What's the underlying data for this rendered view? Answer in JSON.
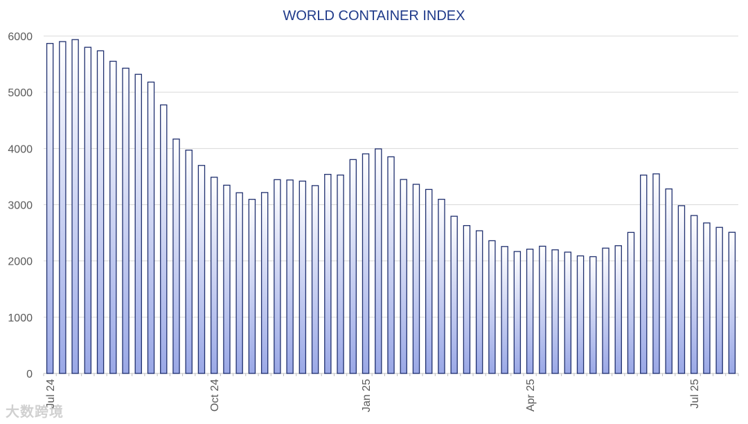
{
  "chart_data": {
    "type": "bar",
    "title": "WORLD CONTAINER INDEX",
    "xlabel": "",
    "ylabel": "",
    "ylim": [
      0,
      6000
    ],
    "yticks": [
      0,
      1000,
      2000,
      3000,
      4000,
      5000,
      6000
    ],
    "x_tick_labels": [
      {
        "label": "Jul 24",
        "index": 0
      },
      {
        "label": "Oct 24",
        "index": 13
      },
      {
        "label": "Jan 25",
        "index": 25
      },
      {
        "label": "Apr 25",
        "index": 38
      },
      {
        "label": "Jul 25",
        "index": 51
      }
    ],
    "series": [
      {
        "name": "World Container Index",
        "values": [
          5868,
          5901,
          5936,
          5800,
          5737,
          5551,
          5428,
          5319,
          5181,
          4775,
          4168,
          3971,
          3699,
          3489,
          3347,
          3213,
          3096,
          3217,
          3446,
          3440,
          3420,
          3340,
          3540,
          3528,
          3803,
          3905,
          3993,
          3852,
          3449,
          3363,
          3272,
          3097,
          2795,
          2629,
          2537,
          2360,
          2257,
          2168,
          2210,
          2262,
          2198,
          2157,
          2090,
          2076,
          2228,
          2271,
          2508,
          3527,
          3549,
          3281,
          2983,
          2808,
          2676,
          2597,
          2510
        ]
      }
    ],
    "colors": {
      "bar_top": "#ffffff",
      "bar_bottom": "#9aa8e6",
      "bar_stroke": "#1f2f6e",
      "title": "#1f3a8a"
    }
  },
  "watermark": "大数跨境"
}
